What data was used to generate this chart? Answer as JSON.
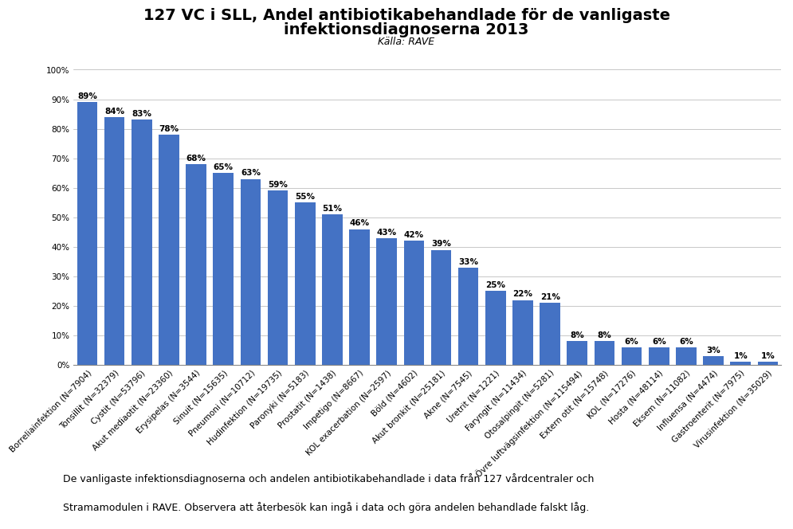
{
  "title_line1": "127 VC i SLL, Andel antibiotikabehandlade för de vanligaste",
  "title_line2": "infektionsdiagnoserna 2013",
  "subtitle": "Källa: RAVE",
  "categories": [
    "Borreliainfektion (N=7904)",
    "Tonsillit (N=32379)",
    "Cystit (N=53796)",
    "Akut mediaotit (N=23360)",
    "Erysipelas (N=3544)",
    "Sinuit (N=15635)",
    "Pneumoni (N=10712)",
    "Hudinfektion (N=19735)",
    "Paronyki (N=5183)",
    "Prostatit (N=1438)",
    "Impetigo (N=8667)",
    "KOL exacerbation (N=2597)",
    "Böld (N=4602)",
    "Akut bronkit (N=25181)",
    "Akne (N=7545)",
    "Uretrit (N=1221)",
    "Faryngit (N=11434)",
    "Otosalpingit (N=5281)",
    "Övre luftvägsinfektion (N=115494)",
    "Extern otit (N=15748)",
    "KOL (N=17276)",
    "Hosta (N=48114)",
    "Eksem (N=11082)",
    "Influensa (N=4474)",
    "Gastroenterit (N=7975)",
    "Virusinfektion (N=35029)"
  ],
  "values": [
    89,
    84,
    83,
    78,
    68,
    65,
    63,
    59,
    55,
    51,
    46,
    43,
    42,
    39,
    33,
    25,
    22,
    21,
    8,
    8,
    6,
    6,
    6,
    3,
    1,
    1
  ],
  "bar_color": "#4472C4",
  "ylabel_ticks": [
    "0%",
    "10%",
    "20%",
    "30%",
    "40%",
    "50%",
    "60%",
    "70%",
    "80%",
    "90%",
    "100%"
  ],
  "ylim": [
    0,
    100
  ],
  "yticks": [
    0,
    10,
    20,
    30,
    40,
    50,
    60,
    70,
    80,
    90,
    100
  ],
  "footnote_line1": "De vanligaste infektionsdiagnoserna och andelen antibiotikabehandlade i data från 127 vårdcentraler och",
  "footnote_line2": "Stramamodulen i RAVE. Observera att återbesök kan ingå i data och göra andelen behandlade falskt låg.",
  "footnote_bg": "#dce6f1",
  "title_fontsize": 14,
  "subtitle_fontsize": 9,
  "bar_label_fontsize": 7.5,
  "tick_label_fontsize": 7.5,
  "footnote_fontsize": 9
}
